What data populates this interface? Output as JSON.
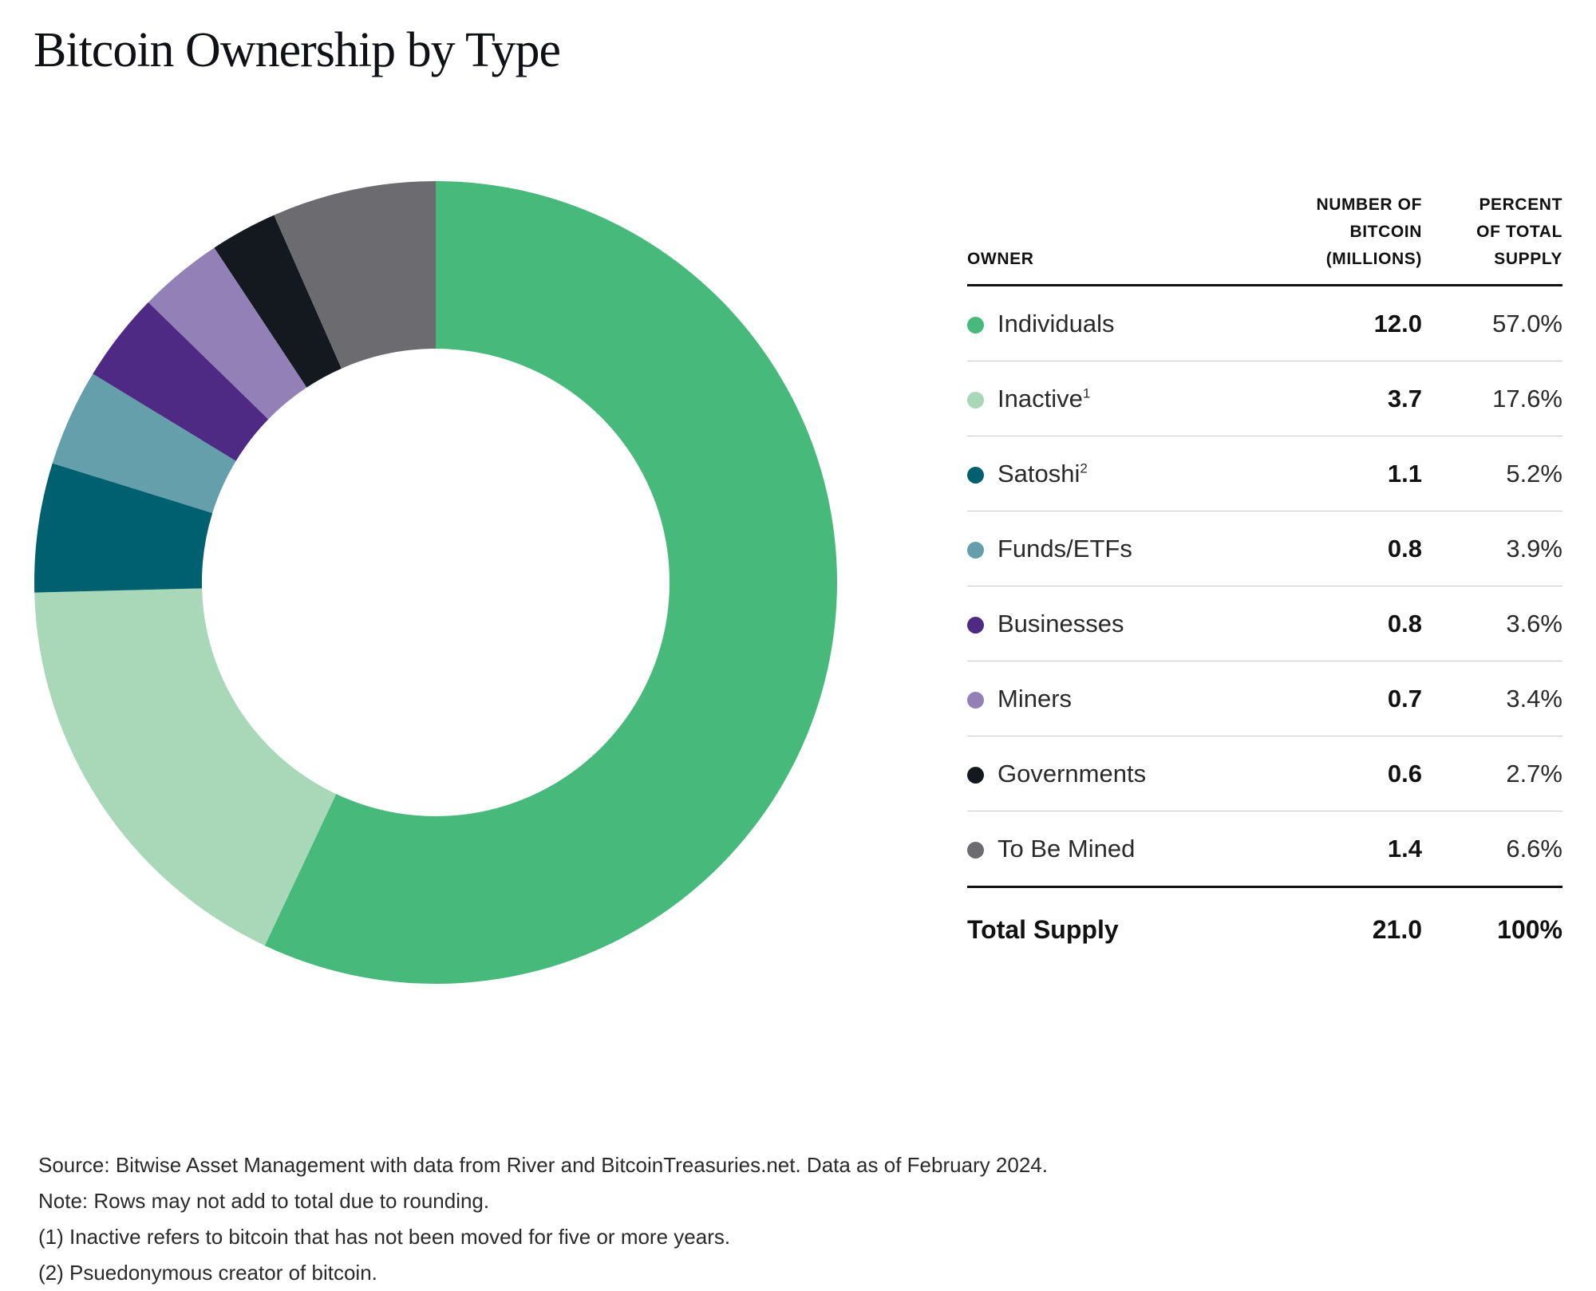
{
  "title": "Bitcoin Ownership by Type",
  "table": {
    "header": {
      "owner": "OWNER",
      "number_lines": [
        "NUMBER OF",
        "BITCOIN",
        "(MILLIONS)"
      ],
      "percent_lines": [
        "PERCENT",
        "OF TOTAL",
        "SUPPLY"
      ]
    },
    "rows": [
      {
        "name": "Individuals",
        "sup": "",
        "number": "12.0",
        "percent": "57.0%",
        "color": "#47b97a"
      },
      {
        "name": "Inactive",
        "sup": "1",
        "number": "3.7",
        "percent": "17.6%",
        "color": "#a8d8b7"
      },
      {
        "name": "Satoshi",
        "sup": "2",
        "number": "1.1",
        "percent": "5.2%",
        "color": "#00606f"
      },
      {
        "name": "Funds/ETFs",
        "sup": "",
        "number": "0.8",
        "percent": "3.9%",
        "color": "#649fab"
      },
      {
        "name": "Businesses",
        "sup": "",
        "number": "0.8",
        "percent": "3.6%",
        "color": "#4e2a84"
      },
      {
        "name": "Miners",
        "sup": "",
        "number": "0.7",
        "percent": "3.4%",
        "color": "#9280b6"
      },
      {
        "name": "Governments",
        "sup": "",
        "number": "0.6",
        "percent": "2.7%",
        "color": "#13191f"
      },
      {
        "name": "To Be Mined",
        "sup": "",
        "number": "1.4",
        "percent": "6.6%",
        "color": "#6c6b70"
      }
    ],
    "total": {
      "label": "Total Supply",
      "number": "21.0",
      "percent": "100%"
    }
  },
  "notes": [
    "Source: Bitwise Asset Management with data from River and BitcoinTreasuries.net. Data as of February 2024.",
    "Note: Rows may not add to total due to rounding.",
    "(1) Inactive refers to bitcoin that has not been moved for five or more years.",
    "(2) Psuedonymous creator of bitcoin."
  ],
  "chart_data": {
    "type": "pie",
    "title": "Bitcoin Ownership by Type",
    "donut": true,
    "start": "top",
    "direction": "clockwise",
    "categories": [
      "Individuals",
      "Inactive",
      "Satoshi",
      "Funds/ETFs",
      "Businesses",
      "Miners",
      "Governments",
      "To Be Mined"
    ],
    "values": [
      57.0,
      17.6,
      5.2,
      3.9,
      3.6,
      3.4,
      2.7,
      6.6
    ],
    "value_unit": "percent of total supply",
    "bitcoin_millions": [
      12.0,
      3.7,
      1.1,
      0.8,
      0.8,
      0.7,
      0.6,
      1.4
    ],
    "colors": [
      "#47b97a",
      "#a8d8b7",
      "#00606f",
      "#649fab",
      "#4e2a84",
      "#9280b6",
      "#13191f",
      "#6c6b70"
    ]
  }
}
